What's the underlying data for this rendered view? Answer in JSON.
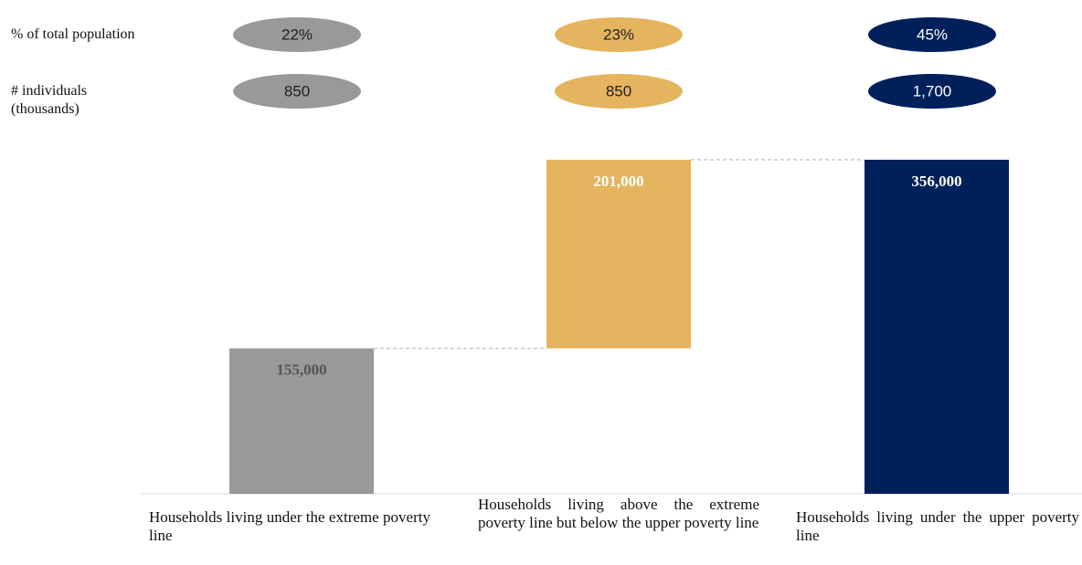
{
  "chart_data": {
    "type": "waterfall",
    "categories": [
      "Households living under the extreme poverty line",
      "Households living above the extreme poverty line but below the upper poverty line",
      "Households living under the upper poverty line"
    ],
    "values": [
      155000,
      201000,
      356000
    ],
    "value_labels": [
      "155,000",
      "201,000",
      "356,000"
    ],
    "is_total": [
      false,
      false,
      true
    ],
    "colors": [
      "#999999",
      "#e5b45e",
      "#00205b"
    ],
    "rows": [
      {
        "label": "% of total population",
        "values": [
          22,
          23,
          45
        ],
        "value_labels": [
          "22%",
          "23%",
          "45%"
        ]
      },
      {
        "label": "# individuals (thousands)",
        "values": [
          850,
          850,
          1700
        ],
        "value_labels": [
          "850",
          "850",
          "1,700"
        ]
      }
    ]
  }
}
